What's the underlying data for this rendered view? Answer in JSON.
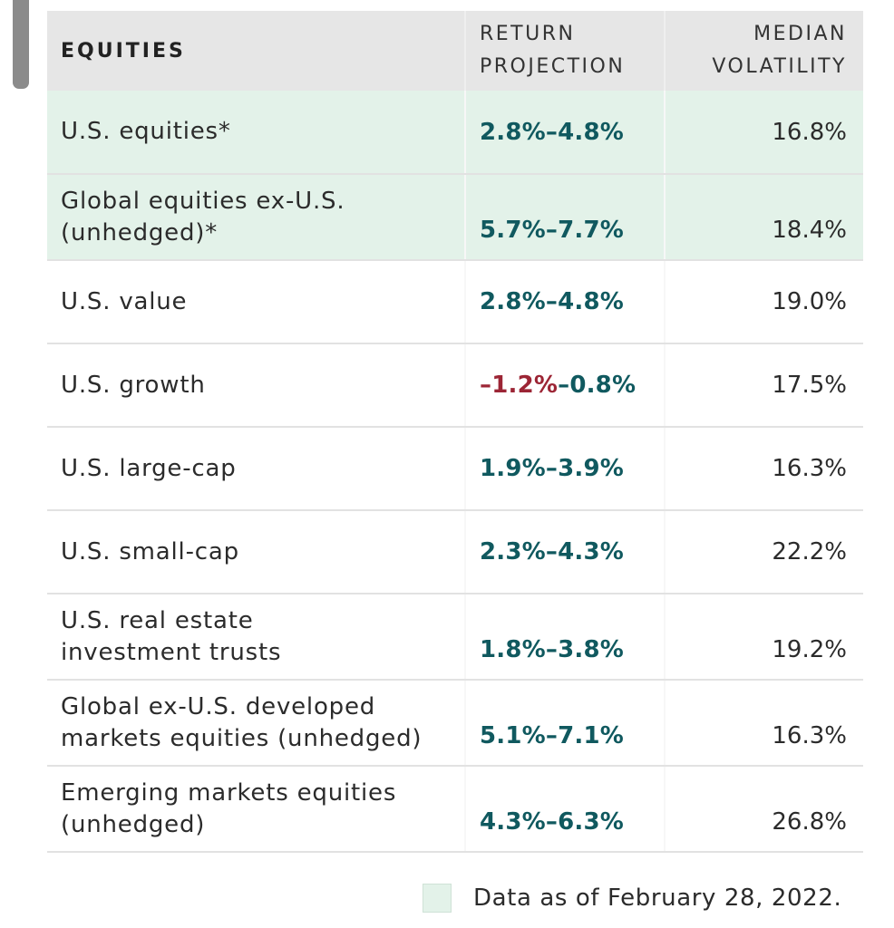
{
  "table": {
    "header": {
      "col1": "EQUITIES",
      "col2": "RETURN\nPROJECTION",
      "col3": "MEDIAN\nVOLATILITY"
    },
    "rows": [
      {
        "label": "U.S. equities*",
        "return_low": "2.8%",
        "return_high": "4.8%",
        "volatility": "16.8%",
        "highlight": true
      },
      {
        "label": "Global equities ex-U.S. (unhedged)*",
        "return_low": "5.7%",
        "return_high": "7.7%",
        "volatility": "18.4%",
        "highlight": true
      },
      {
        "label": "U.S. value",
        "return_low": "2.8%",
        "return_high": "4.8%",
        "volatility": "19.0%",
        "highlight": false
      },
      {
        "label": "U.S. growth",
        "return_low": "–1.2%",
        "return_high": "0.8%",
        "volatility": "17.5%",
        "highlight": false,
        "negative_low": true
      },
      {
        "label": "U.S. large-cap",
        "return_low": "1.9%",
        "return_high": "3.9%",
        "volatility": "16.3%",
        "highlight": false
      },
      {
        "label": "U.S. small-cap",
        "return_low": "2.3%",
        "return_high": "4.3%",
        "volatility": "22.2%",
        "highlight": false
      },
      {
        "label": "U.S. real estate investment trusts",
        "return_low": "1.8%",
        "return_high": "3.8%",
        "volatility": "19.2%",
        "highlight": false
      },
      {
        "label": "Global ex-U.S. developed markets equities (unhedged)",
        "return_low": "5.1%",
        "return_high": "7.1%",
        "volatility": "16.3%",
        "highlight": false
      },
      {
        "label": "Emerging markets equities (unhedged)",
        "return_low": "4.3%",
        "return_high": "6.3%",
        "volatility": "26.8%",
        "highlight": false
      }
    ]
  },
  "footer": {
    "legend_swatch_color": "#e3f2e9",
    "note": "Data as of February 28, 2022."
  },
  "colors": {
    "positive_return": "#10595f",
    "negative_return": "#9c2535",
    "highlight_row": "#e3f2e9",
    "header_bg": "#e6e6e6"
  }
}
